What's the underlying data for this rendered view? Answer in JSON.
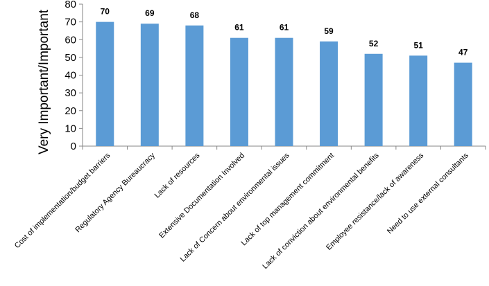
{
  "chart_data": {
    "type": "bar",
    "categories": [
      "Cost of implementation/budget barriers",
      "Regulatory Agency Bureaucracy",
      "Lack of resources",
      "Extensive Documentation Involved",
      "Lack of Concern about environmental issues",
      "Lack of top management commitment",
      "Lack of conviction about environmental benefits",
      "Employee resistance/lack of awareness",
      "Need to use external consultants"
    ],
    "values": [
      70,
      69,
      68,
      61,
      61,
      59,
      52,
      51,
      47
    ],
    "ylabel": "Very Important/Important",
    "xlabel": "",
    "ylim": [
      0,
      80
    ],
    "yticks": [
      0,
      10,
      20,
      30,
      40,
      50,
      60,
      70,
      80
    ],
    "bar_color": "#5B9BD5",
    "grid": false,
    "legend": "none",
    "data_labels": true
  }
}
